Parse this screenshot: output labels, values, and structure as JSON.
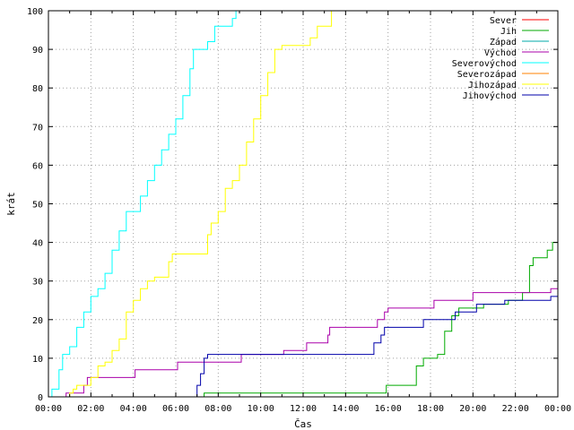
{
  "chart_data": {
    "type": "line",
    "title": "",
    "xlabel": "Čas",
    "ylabel": "krát",
    "x_range_hours": [
      0,
      24
    ],
    "xlim": [
      "00:00",
      "24:00"
    ],
    "ylim": [
      0,
      100
    ],
    "x_ticks": [
      "00:00",
      "02:00",
      "04:00",
      "06:00",
      "08:00",
      "10:00",
      "12:00",
      "14:00",
      "16:00",
      "18:00",
      "20:00",
      "22:00",
      "00:00"
    ],
    "y_ticks": [
      "0",
      "10",
      "20",
      "30",
      "40",
      "50",
      "60",
      "70",
      "80",
      "90",
      "100"
    ],
    "grid": true,
    "legend_position": "top-right",
    "series": [
      {
        "name": "Sever",
        "color": "#ff0000",
        "points": []
      },
      {
        "name": "Jih",
        "color": "#00aa00",
        "points": [
          [
            "07:00",
            0
          ],
          [
            "07:20",
            1
          ],
          [
            "15:50",
            1
          ],
          [
            "15:55",
            3
          ],
          [
            "17:00",
            3
          ],
          [
            "17:20",
            8
          ],
          [
            "17:40",
            10
          ],
          [
            "18:00",
            10
          ],
          [
            "18:20",
            11
          ],
          [
            "18:40",
            17
          ],
          [
            "19:00",
            21
          ],
          [
            "19:20",
            23
          ],
          [
            "20:10",
            23
          ],
          [
            "20:30",
            24
          ],
          [
            "21:20",
            24
          ],
          [
            "21:40",
            25
          ],
          [
            "22:20",
            27
          ],
          [
            "22:40",
            34
          ],
          [
            "22:50",
            36
          ],
          [
            "23:10",
            36
          ],
          [
            "23:30",
            38
          ],
          [
            "23:45",
            40
          ],
          [
            "24:00",
            40
          ]
        ]
      },
      {
        "name": "Západ",
        "color": "#00aaaa",
        "points": []
      },
      {
        "name": "Východ",
        "color": "#aa00aa",
        "points": [
          [
            "00:45",
            0
          ],
          [
            "00:50",
            1
          ],
          [
            "01:30",
            1
          ],
          [
            "01:40",
            3
          ],
          [
            "01:50",
            5
          ],
          [
            "04:00",
            5
          ],
          [
            "04:05",
            7
          ],
          [
            "06:00",
            7
          ],
          [
            "06:05",
            9
          ],
          [
            "07:45",
            9
          ],
          [
            "08:00",
            9
          ],
          [
            "09:00",
            9
          ],
          [
            "09:05",
            11
          ],
          [
            "11:00",
            11
          ],
          [
            "11:05",
            12
          ],
          [
            "12:00",
            12
          ],
          [
            "12:10",
            14
          ],
          [
            "13:00",
            14
          ],
          [
            "13:10",
            16
          ],
          [
            "13:15",
            18
          ],
          [
            "15:00",
            18
          ],
          [
            "15:30",
            20
          ],
          [
            "15:50",
            22
          ],
          [
            "16:00",
            23
          ],
          [
            "18:00",
            23
          ],
          [
            "18:10",
            25
          ],
          [
            "19:50",
            25
          ],
          [
            "20:00",
            27
          ],
          [
            "23:30",
            27
          ],
          [
            "23:40",
            28
          ],
          [
            "24:00",
            28
          ]
        ]
      },
      {
        "name": "Severovýchod",
        "color": "#00ffff",
        "points": [
          [
            "00:00",
            0
          ],
          [
            "00:10",
            2
          ],
          [
            "00:30",
            7
          ],
          [
            "00:40",
            11
          ],
          [
            "01:00",
            13
          ],
          [
            "01:20",
            18
          ],
          [
            "01:40",
            22
          ],
          [
            "02:00",
            26
          ],
          [
            "02:20",
            28
          ],
          [
            "02:40",
            32
          ],
          [
            "03:00",
            38
          ],
          [
            "03:20",
            43
          ],
          [
            "03:40",
            48
          ],
          [
            "04:00",
            48
          ],
          [
            "04:20",
            52
          ],
          [
            "04:40",
            56
          ],
          [
            "05:00",
            60
          ],
          [
            "05:20",
            64
          ],
          [
            "05:40",
            68
          ],
          [
            "06:00",
            72
          ],
          [
            "06:20",
            78
          ],
          [
            "06:40",
            85
          ],
          [
            "06:50",
            90
          ],
          [
            "07:10",
            90
          ],
          [
            "07:30",
            92
          ],
          [
            "07:50",
            96
          ],
          [
            "08:20",
            96
          ],
          [
            "08:40",
            98
          ],
          [
            "08:50",
            100
          ]
        ]
      },
      {
        "name": "Severozápad",
        "color": "#ff8000",
        "points": []
      },
      {
        "name": "Jihozápad",
        "color": "#ffff00",
        "points": [
          [
            "00:50",
            0
          ],
          [
            "01:00",
            1
          ],
          [
            "01:10",
            2
          ],
          [
            "01:20",
            3
          ],
          [
            "01:40",
            3
          ],
          [
            "02:00",
            5
          ],
          [
            "02:20",
            8
          ],
          [
            "02:40",
            9
          ],
          [
            "03:00",
            12
          ],
          [
            "03:20",
            15
          ],
          [
            "03:40",
            22
          ],
          [
            "04:00",
            25
          ],
          [
            "04:20",
            28
          ],
          [
            "04:40",
            30
          ],
          [
            "05:00",
            31
          ],
          [
            "05:30",
            31
          ],
          [
            "05:40",
            35
          ],
          [
            "05:50",
            37
          ],
          [
            "07:00",
            37
          ],
          [
            "07:20",
            37
          ],
          [
            "07:30",
            42
          ],
          [
            "07:40",
            45
          ],
          [
            "08:00",
            48
          ],
          [
            "08:20",
            54
          ],
          [
            "08:40",
            56
          ],
          [
            "09:00",
            60
          ],
          [
            "09:20",
            66
          ],
          [
            "09:40",
            72
          ],
          [
            "10:00",
            78
          ],
          [
            "10:20",
            84
          ],
          [
            "10:40",
            90
          ],
          [
            "11:00",
            91
          ],
          [
            "12:00",
            91
          ],
          [
            "12:20",
            93
          ],
          [
            "12:40",
            96
          ],
          [
            "13:00",
            96
          ],
          [
            "13:20",
            100
          ]
        ]
      },
      {
        "name": "Jihovýchod",
        "color": "#0000aa",
        "points": [
          [
            "06:50",
            0
          ],
          [
            "07:00",
            3
          ],
          [
            "07:10",
            6
          ],
          [
            "07:20",
            10
          ],
          [
            "07:30",
            11
          ],
          [
            "15:10",
            11
          ],
          [
            "15:20",
            14
          ],
          [
            "15:40",
            16
          ],
          [
            "15:50",
            18
          ],
          [
            "17:30",
            18
          ],
          [
            "17:40",
            20
          ],
          [
            "19:00",
            20
          ],
          [
            "19:10",
            22
          ],
          [
            "20:00",
            22
          ],
          [
            "20:10",
            24
          ],
          [
            "21:20",
            24
          ],
          [
            "21:30",
            25
          ],
          [
            "23:40",
            26
          ],
          [
            "24:00",
            28
          ]
        ]
      }
    ]
  }
}
